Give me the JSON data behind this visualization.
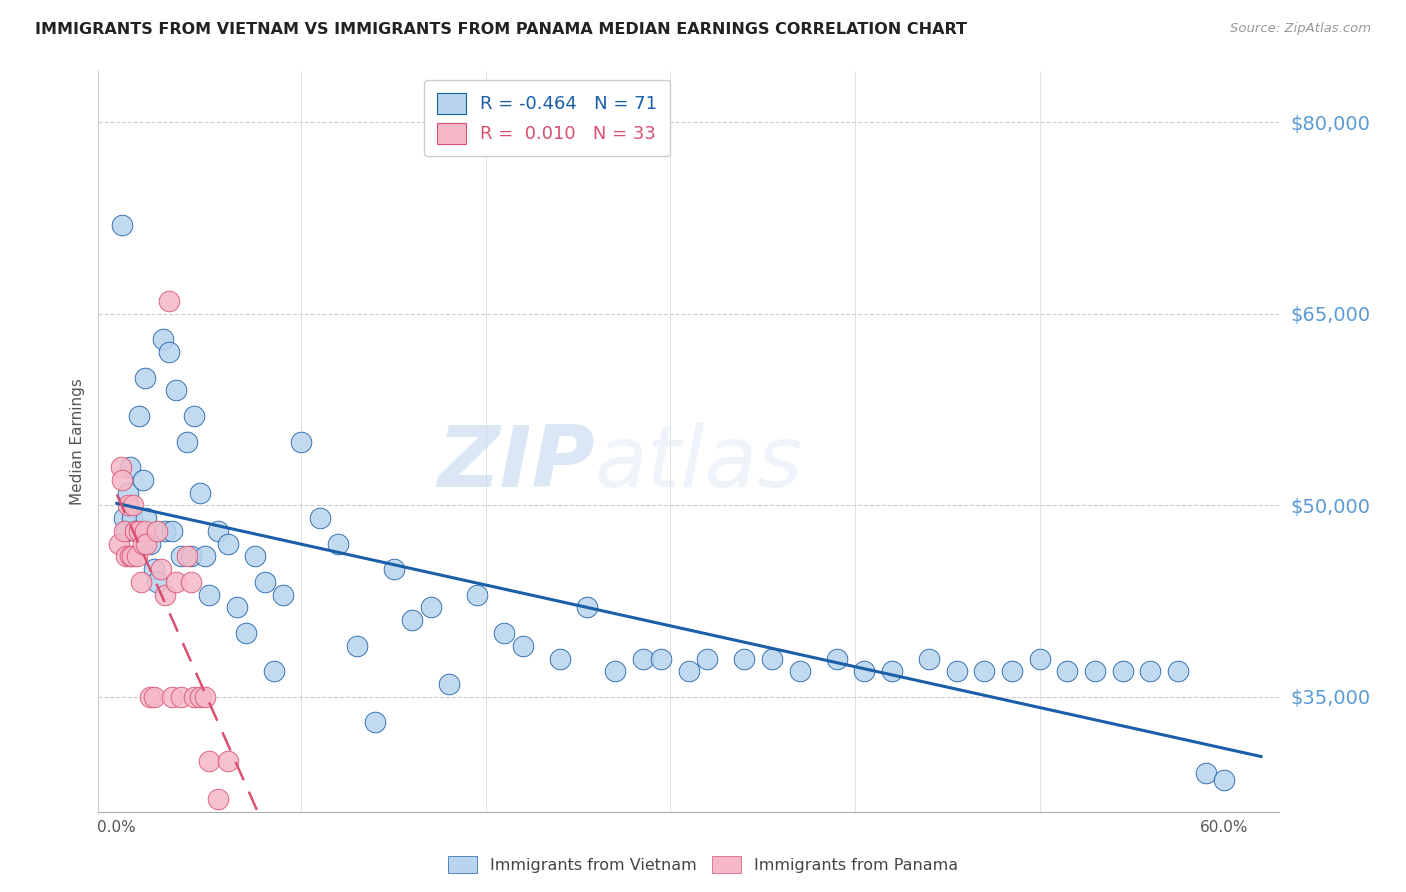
{
  "title": "IMMIGRANTS FROM VIETNAM VS IMMIGRANTS FROM PANAMA MEDIAN EARNINGS CORRELATION CHART",
  "source": "Source: ZipAtlas.com",
  "ylabel": "Median Earnings",
  "legend_labels": [
    "Immigrants from Vietnam",
    "Immigrants from Panama"
  ],
  "r_vietnam": -0.464,
  "n_vietnam": 71,
  "r_panama": 0.01,
  "n_panama": 33,
  "color_vietnam": "#b8d4ee",
  "color_panama": "#f5b8c8",
  "line_color_vietnam": "#1a5fa8",
  "line_color_panama": "#d95070",
  "watermark_zip": "ZIP",
  "watermark_atlas": "atlas",
  "yticks": [
    35000,
    50000,
    65000,
    80000
  ],
  "ylim": [
    26000,
    84000
  ],
  "xlim": [
    -0.01,
    0.63
  ],
  "xtick_left": "0.0%",
  "xtick_right": "60.0%",
  "ytick_labels": [
    "$35,000",
    "$50,000",
    "$65,000",
    "$80,000"
  ],
  "ytick_color": "#5b9bd5",
  "vietnam_x": [
    0.003,
    0.004,
    0.005,
    0.006,
    0.007,
    0.008,
    0.01,
    0.012,
    0.014,
    0.015,
    0.016,
    0.018,
    0.02,
    0.022,
    0.025,
    0.026,
    0.028,
    0.03,
    0.032,
    0.035,
    0.038,
    0.04,
    0.042,
    0.045,
    0.048,
    0.05,
    0.055,
    0.06,
    0.065,
    0.07,
    0.075,
    0.08,
    0.085,
    0.09,
    0.1,
    0.11,
    0.12,
    0.13,
    0.14,
    0.15,
    0.16,
    0.17,
    0.18,
    0.195,
    0.21,
    0.22,
    0.24,
    0.255,
    0.27,
    0.285,
    0.295,
    0.31,
    0.32,
    0.34,
    0.355,
    0.37,
    0.39,
    0.405,
    0.42,
    0.44,
    0.455,
    0.47,
    0.485,
    0.5,
    0.515,
    0.53,
    0.545,
    0.56,
    0.575,
    0.59,
    0.6
  ],
  "vietnam_y": [
    72000,
    49000,
    48000,
    51000,
    53000,
    49000,
    48000,
    57000,
    52000,
    60000,
    49000,
    47000,
    45000,
    44000,
    63000,
    48000,
    62000,
    48000,
    59000,
    46000,
    55000,
    46000,
    57000,
    51000,
    46000,
    43000,
    48000,
    47000,
    42000,
    40000,
    46000,
    44000,
    37000,
    43000,
    55000,
    49000,
    47000,
    39000,
    33000,
    45000,
    41000,
    42000,
    36000,
    43000,
    40000,
    39000,
    38000,
    42000,
    37000,
    38000,
    38000,
    37000,
    38000,
    38000,
    38000,
    37000,
    38000,
    37000,
    37000,
    38000,
    37000,
    37000,
    37000,
    38000,
    37000,
    37000,
    37000,
    37000,
    37000,
    29000,
    28500
  ],
  "panama_x": [
    0.001,
    0.002,
    0.003,
    0.004,
    0.005,
    0.006,
    0.007,
    0.008,
    0.009,
    0.01,
    0.011,
    0.012,
    0.013,
    0.014,
    0.015,
    0.016,
    0.018,
    0.02,
    0.022,
    0.024,
    0.026,
    0.028,
    0.03,
    0.032,
    0.035,
    0.038,
    0.04,
    0.042,
    0.045,
    0.048,
    0.05,
    0.055,
    0.06
  ],
  "panama_y": [
    47000,
    53000,
    52000,
    48000,
    46000,
    50000,
    46000,
    46000,
    50000,
    48000,
    46000,
    48000,
    44000,
    47000,
    48000,
    47000,
    35000,
    35000,
    48000,
    45000,
    43000,
    66000,
    35000,
    44000,
    35000,
    46000,
    44000,
    35000,
    35000,
    35000,
    30000,
    27000,
    30000
  ]
}
